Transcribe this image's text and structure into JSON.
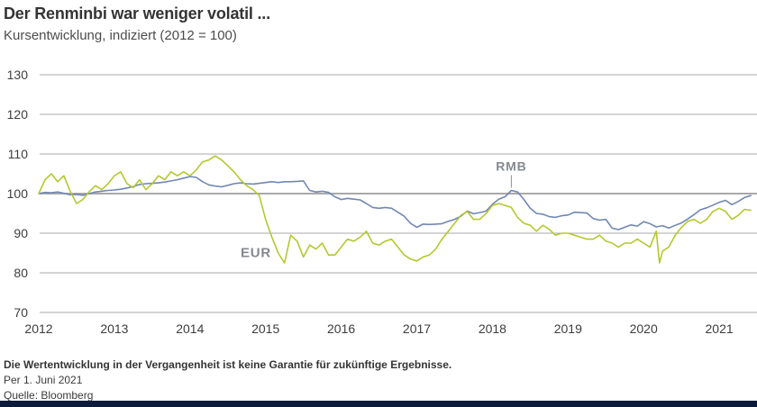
{
  "header": {
    "title": "Der Renminbi war weniger volatil ...",
    "subtitle": "Kursentwicklung, indiziert (2012 = 100)"
  },
  "footer": {
    "disclaimer": "Die Wertentwicklung in der Vergangenheit ist keine Garantie für zukünftige Ergebnisse.",
    "as_of": "Per 1. Juni 2021",
    "source": "Quelle: Bloomberg",
    "bar_color": "#0c1a3c"
  },
  "chart_data": {
    "type": "line",
    "title": "Der Renminbi war weniger volatil ...",
    "subtitle": "Kursentwicklung, indiziert (2012 = 100)",
    "xlabel": "",
    "ylabel": "",
    "x_ticks": [
      2012,
      2013,
      2014,
      2015,
      2016,
      2017,
      2018,
      2019,
      2020,
      2021
    ],
    "y_ticks": [
      130,
      120,
      110,
      100,
      90,
      80,
      70
    ],
    "ylim": [
      70,
      130
    ],
    "xlim": [
      2012.0,
      2021.45
    ],
    "baseline": 100,
    "grid": "horizontal",
    "legend_position": "inline-annotations",
    "colors": {
      "rmb": "#7187b4",
      "eur": "#b5c82f",
      "grid": "#a9a9a9",
      "labels": "#85898f"
    },
    "annotations": [
      {
        "label": "RMB",
        "year": 2018.25,
        "value": 100.8,
        "leader": true,
        "anchor": "middle"
      },
      {
        "label": "EUR",
        "year": 2014.67,
        "value": 84.0,
        "leader": false,
        "anchor": "start"
      }
    ],
    "series": [
      {
        "name": "RMB",
        "color": "#7187b4",
        "points": [
          [
            2012.0,
            100.0
          ],
          [
            2012.083,
            100.3
          ],
          [
            2012.167,
            100.2
          ],
          [
            2012.25,
            100.4
          ],
          [
            2012.333,
            100.1
          ],
          [
            2012.417,
            99.7
          ],
          [
            2012.5,
            99.8
          ],
          [
            2012.583,
            99.6
          ],
          [
            2012.667,
            100.0
          ],
          [
            2012.75,
            100.4
          ],
          [
            2012.833,
            100.6
          ],
          [
            2012.917,
            100.8
          ],
          [
            2013.0,
            100.9
          ],
          [
            2013.083,
            101.1
          ],
          [
            2013.167,
            101.4
          ],
          [
            2013.25,
            101.8
          ],
          [
            2013.333,
            102.3
          ],
          [
            2013.417,
            102.5
          ],
          [
            2013.5,
            102.6
          ],
          [
            2013.583,
            102.7
          ],
          [
            2013.667,
            102.9
          ],
          [
            2013.75,
            103.2
          ],
          [
            2013.833,
            103.5
          ],
          [
            2013.917,
            103.9
          ],
          [
            2014.0,
            104.3
          ],
          [
            2014.083,
            104.1
          ],
          [
            2014.167,
            103.0
          ],
          [
            2014.25,
            102.2
          ],
          [
            2014.333,
            101.9
          ],
          [
            2014.417,
            101.7
          ],
          [
            2014.5,
            102.1
          ],
          [
            2014.583,
            102.5
          ],
          [
            2014.667,
            102.7
          ],
          [
            2014.75,
            102.5
          ],
          [
            2014.833,
            102.4
          ],
          [
            2014.917,
            102.6
          ],
          [
            2015.0,
            102.8
          ],
          [
            2015.083,
            103.0
          ],
          [
            2015.167,
            102.8
          ],
          [
            2015.25,
            103.0
          ],
          [
            2015.333,
            103.0
          ],
          [
            2015.417,
            103.1
          ],
          [
            2015.5,
            103.2
          ],
          [
            2015.583,
            100.8
          ],
          [
            2015.667,
            100.4
          ],
          [
            2015.75,
            100.6
          ],
          [
            2015.833,
            100.3
          ],
          [
            2015.917,
            99.2
          ],
          [
            2016.0,
            98.5
          ],
          [
            2016.083,
            98.8
          ],
          [
            2016.167,
            98.6
          ],
          [
            2016.25,
            98.4
          ],
          [
            2016.333,
            97.5
          ],
          [
            2016.417,
            96.5
          ],
          [
            2016.5,
            96.3
          ],
          [
            2016.583,
            96.5
          ],
          [
            2016.667,
            96.3
          ],
          [
            2016.75,
            95.3
          ],
          [
            2016.833,
            94.3
          ],
          [
            2016.917,
            92.5
          ],
          [
            2017.0,
            91.5
          ],
          [
            2017.083,
            92.3
          ],
          [
            2017.167,
            92.2
          ],
          [
            2017.25,
            92.3
          ],
          [
            2017.333,
            92.4
          ],
          [
            2017.417,
            93.0
          ],
          [
            2017.5,
            93.5
          ],
          [
            2017.583,
            94.3
          ],
          [
            2017.667,
            95.6
          ],
          [
            2017.75,
            94.9
          ],
          [
            2017.833,
            95.2
          ],
          [
            2017.917,
            95.6
          ],
          [
            2018.0,
            97.3
          ],
          [
            2018.083,
            98.6
          ],
          [
            2018.167,
            99.2
          ],
          [
            2018.25,
            100.8
          ],
          [
            2018.333,
            100.4
          ],
          [
            2018.417,
            98.5
          ],
          [
            2018.5,
            96.3
          ],
          [
            2018.583,
            95.0
          ],
          [
            2018.667,
            94.8
          ],
          [
            2018.75,
            94.2
          ],
          [
            2018.833,
            94.0
          ],
          [
            2018.917,
            94.4
          ],
          [
            2019.0,
            94.6
          ],
          [
            2019.083,
            95.3
          ],
          [
            2019.167,
            95.2
          ],
          [
            2019.25,
            95.1
          ],
          [
            2019.333,
            93.7
          ],
          [
            2019.417,
            93.3
          ],
          [
            2019.5,
            93.5
          ],
          [
            2019.583,
            91.3
          ],
          [
            2019.667,
            90.9
          ],
          [
            2019.75,
            91.5
          ],
          [
            2019.833,
            92.1
          ],
          [
            2019.917,
            91.8
          ],
          [
            2020.0,
            92.9
          ],
          [
            2020.083,
            92.4
          ],
          [
            2020.167,
            91.6
          ],
          [
            2020.25,
            91.9
          ],
          [
            2020.333,
            91.3
          ],
          [
            2020.417,
            92.0
          ],
          [
            2020.5,
            92.6
          ],
          [
            2020.583,
            93.6
          ],
          [
            2020.667,
            94.7
          ],
          [
            2020.75,
            95.9
          ],
          [
            2020.833,
            96.4
          ],
          [
            2020.917,
            97.1
          ],
          [
            2021.0,
            97.8
          ],
          [
            2021.083,
            98.3
          ],
          [
            2021.167,
            97.2
          ],
          [
            2021.25,
            98.0
          ],
          [
            2021.333,
            99.0
          ],
          [
            2021.417,
            99.5
          ]
        ]
      },
      {
        "name": "EUR",
        "color": "#b5c82f",
        "points": [
          [
            2012.0,
            100.0
          ],
          [
            2012.083,
            103.5
          ],
          [
            2012.167,
            105.0
          ],
          [
            2012.25,
            103.0
          ],
          [
            2012.333,
            104.5
          ],
          [
            2012.417,
            100.5
          ],
          [
            2012.5,
            97.5
          ],
          [
            2012.583,
            98.5
          ],
          [
            2012.667,
            100.5
          ],
          [
            2012.75,
            102.0
          ],
          [
            2012.833,
            101.0
          ],
          [
            2012.917,
            102.5
          ],
          [
            2013.0,
            104.5
          ],
          [
            2013.083,
            105.5
          ],
          [
            2013.167,
            102.5
          ],
          [
            2013.25,
            101.5
          ],
          [
            2013.333,
            103.5
          ],
          [
            2013.417,
            101.0
          ],
          [
            2013.5,
            102.5
          ],
          [
            2013.583,
            104.5
          ],
          [
            2013.667,
            103.5
          ],
          [
            2013.75,
            105.5
          ],
          [
            2013.833,
            104.5
          ],
          [
            2013.917,
            105.5
          ],
          [
            2014.0,
            104.5
          ],
          [
            2014.083,
            106.0
          ],
          [
            2014.167,
            108.0
          ],
          [
            2014.25,
            108.5
          ],
          [
            2014.333,
            109.5
          ],
          [
            2014.417,
            108.5
          ],
          [
            2014.5,
            107.0
          ],
          [
            2014.583,
            105.5
          ],
          [
            2014.667,
            103.5
          ],
          [
            2014.75,
            102.0
          ],
          [
            2014.833,
            101.0
          ],
          [
            2014.917,
            99.5
          ],
          [
            2015.0,
            93.5
          ],
          [
            2015.083,
            89.0
          ],
          [
            2015.167,
            85.0
          ],
          [
            2015.25,
            82.5
          ],
          [
            2015.333,
            89.5
          ],
          [
            2015.417,
            88.0
          ],
          [
            2015.5,
            84.0
          ],
          [
            2015.583,
            87.0
          ],
          [
            2015.667,
            86.0
          ],
          [
            2015.75,
            87.5
          ],
          [
            2015.833,
            84.5
          ],
          [
            2015.917,
            84.5
          ],
          [
            2016.0,
            86.5
          ],
          [
            2016.083,
            88.5
          ],
          [
            2016.167,
            88.0
          ],
          [
            2016.25,
            89.0
          ],
          [
            2016.333,
            90.5
          ],
          [
            2016.417,
            87.5
          ],
          [
            2016.5,
            87.0
          ],
          [
            2016.583,
            88.0
          ],
          [
            2016.667,
            88.5
          ],
          [
            2016.75,
            86.5
          ],
          [
            2016.833,
            84.5
          ],
          [
            2016.917,
            83.5
          ],
          [
            2017.0,
            83.0
          ],
          [
            2017.083,
            84.0
          ],
          [
            2017.167,
            84.5
          ],
          [
            2017.25,
            86.0
          ],
          [
            2017.333,
            88.5
          ],
          [
            2017.417,
            90.5
          ],
          [
            2017.5,
            92.5
          ],
          [
            2017.583,
            94.5
          ],
          [
            2017.667,
            95.5
          ],
          [
            2017.75,
            93.5
          ],
          [
            2017.833,
            93.5
          ],
          [
            2017.917,
            95.0
          ],
          [
            2018.0,
            97.0
          ],
          [
            2018.083,
            97.5
          ],
          [
            2018.167,
            97.0
          ],
          [
            2018.25,
            96.5
          ],
          [
            2018.333,
            94.0
          ],
          [
            2018.417,
            92.5
          ],
          [
            2018.5,
            92.0
          ],
          [
            2018.583,
            90.5
          ],
          [
            2018.667,
            92.0
          ],
          [
            2018.75,
            91.0
          ],
          [
            2018.833,
            89.5
          ],
          [
            2018.917,
            90.0
          ],
          [
            2019.0,
            90.0
          ],
          [
            2019.083,
            89.5
          ],
          [
            2019.167,
            89.0
          ],
          [
            2019.25,
            88.5
          ],
          [
            2019.333,
            88.5
          ],
          [
            2019.417,
            89.5
          ],
          [
            2019.5,
            88.0
          ],
          [
            2019.583,
            87.5
          ],
          [
            2019.667,
            86.5
          ],
          [
            2019.75,
            87.5
          ],
          [
            2019.833,
            87.5
          ],
          [
            2019.917,
            88.5
          ],
          [
            2020.0,
            87.5
          ],
          [
            2020.083,
            86.5
          ],
          [
            2020.167,
            90.5
          ],
          [
            2020.21,
            82.5
          ],
          [
            2020.25,
            85.5
          ],
          [
            2020.333,
            86.5
          ],
          [
            2020.417,
            89.5
          ],
          [
            2020.5,
            91.5
          ],
          [
            2020.583,
            93.0
          ],
          [
            2020.667,
            93.5
          ],
          [
            2020.75,
            92.5
          ],
          [
            2020.833,
            93.5
          ],
          [
            2020.917,
            95.5
          ],
          [
            2021.0,
            96.3
          ],
          [
            2021.083,
            95.5
          ],
          [
            2021.167,
            93.5
          ],
          [
            2021.25,
            94.5
          ],
          [
            2021.333,
            96.0
          ],
          [
            2021.417,
            95.8
          ]
        ]
      }
    ]
  }
}
